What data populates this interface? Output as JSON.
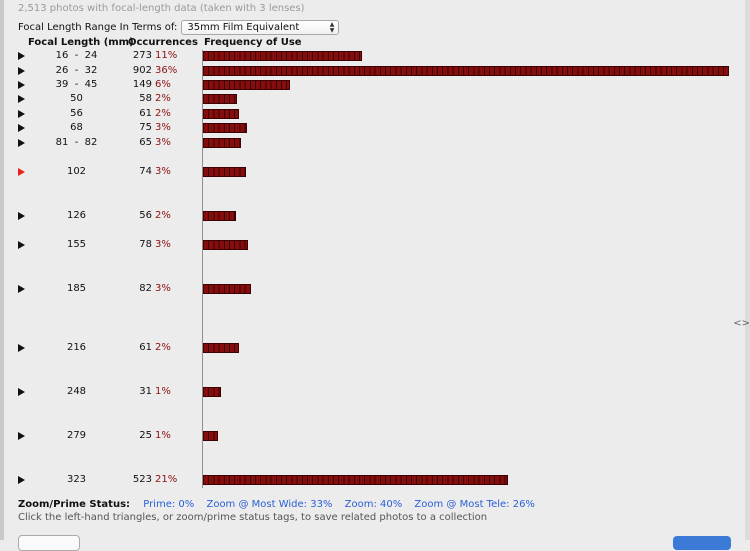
{
  "summary": "2,513 photos with focal-length data (taken with 3 lenses)",
  "range": {
    "label": "Focal Length Range In Terms of:",
    "selected": "35mm Film Equivalent"
  },
  "table": {
    "headers": {
      "focal": "Focal Length (mm)",
      "occurrences": "Occurrences",
      "frequency": "Frequency of Use"
    },
    "rows": [
      {
        "focal": "16  -  24",
        "count": "273",
        "pct": "11%",
        "active": false
      },
      {
        "focal": "26  -  32",
        "count": "902",
        "pct": "36%",
        "active": false
      },
      {
        "focal": "39  -  45",
        "count": "149",
        "pct": "6%",
        "active": false
      },
      {
        "focal": "50",
        "count": "58",
        "pct": "2%",
        "active": false
      },
      {
        "focal": "56",
        "count": "61",
        "pct": "2%",
        "active": false
      },
      {
        "focal": "68",
        "count": "75",
        "pct": "3%",
        "active": false
      },
      {
        "focal": "81  -  82",
        "count": "65",
        "pct": "3%",
        "active": false
      },
      {
        "focal": "102",
        "count": "74",
        "pct": "3%",
        "active": true
      },
      {
        "focal": "126",
        "count": "56",
        "pct": "2%",
        "active": false
      },
      {
        "focal": "155",
        "count": "78",
        "pct": "3%",
        "active": false
      },
      {
        "focal": "185",
        "count": "82",
        "pct": "3%",
        "active": false
      },
      {
        "focal": "216",
        "count": "61",
        "pct": "2%",
        "active": false
      },
      {
        "focal": "248",
        "count": "31",
        "pct": "1%",
        "active": false
      },
      {
        "focal": "279",
        "count": "25",
        "pct": "1%",
        "active": false
      },
      {
        "focal": "323",
        "count": "523",
        "pct": "21%",
        "active": false
      }
    ]
  },
  "status": {
    "label": "Zoom/Prime Status:",
    "tags": [
      "Prime: 0%",
      "Zoom @ Most Wide: 33%",
      "Zoom: 40%",
      "Zoom @ Most Tele: 26%"
    ]
  },
  "hint": "Click the left-hand triangles, or zoom/prime status tags, to save related photos to a collection",
  "colors": {
    "bar": "#850d0d",
    "percent": "#8b1010",
    "active_triangle": "#e8221c",
    "link": "#2a5fd6"
  }
}
